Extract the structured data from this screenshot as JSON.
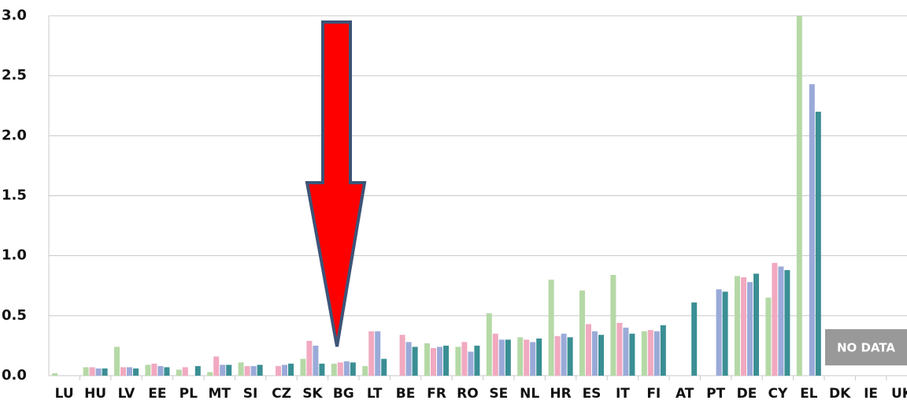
{
  "chart_data": {
    "type": "bar",
    "categories": [
      "LU",
      "HU",
      "LV",
      "EE",
      "PL",
      "MT",
      "SI",
      "CZ",
      "SK",
      "BG",
      "LT",
      "BE",
      "FR",
      "RO",
      "SE",
      "NL",
      "HR",
      "ES",
      "IT",
      "FI",
      "AT",
      "PT",
      "DE",
      "CY",
      "EL",
      "DK",
      "IE",
      "UK"
    ],
    "series": [
      {
        "color": "#b5d9a6",
        "values": [
          0.02,
          0.07,
          0.24,
          0.09,
          0.05,
          0.03,
          0.11,
          null,
          0.14,
          0.1,
          0.08,
          null,
          0.27,
          0.24,
          0.52,
          0.32,
          0.8,
          0.71,
          0.84,
          0.37,
          null,
          null,
          0.83,
          0.65,
          3.0,
          null,
          null,
          null
        ]
      },
      {
        "color": "#f1a9c0",
        "values": [
          null,
          0.07,
          0.07,
          0.1,
          0.07,
          0.16,
          0.08,
          0.08,
          0.29,
          0.11,
          0.37,
          0.34,
          0.23,
          0.28,
          0.35,
          0.3,
          0.33,
          0.43,
          0.44,
          0.38,
          null,
          null,
          0.82,
          0.94,
          null,
          null,
          null,
          null
        ]
      },
      {
        "color": "#9aaad8",
        "values": [
          null,
          0.06,
          0.07,
          0.08,
          null,
          0.09,
          0.08,
          0.09,
          0.25,
          0.12,
          0.37,
          0.28,
          0.24,
          0.2,
          0.3,
          0.28,
          0.35,
          0.37,
          0.4,
          0.37,
          null,
          0.72,
          0.78,
          0.91,
          2.43,
          null,
          null,
          null
        ]
      },
      {
        "color": "#3a8f94",
        "values": [
          null,
          0.06,
          0.06,
          0.07,
          0.08,
          0.09,
          0.09,
          0.1,
          0.1,
          0.11,
          0.14,
          0.24,
          0.25,
          0.25,
          0.3,
          0.31,
          0.32,
          0.34,
          0.35,
          0.42,
          0.61,
          0.7,
          0.85,
          0.88,
          2.2,
          null,
          null,
          null
        ]
      }
    ],
    "ylim": [
      0,
      3
    ],
    "yticks": [
      {
        "value": 0,
        "label": "0.0"
      },
      0.5,
      {
        "value": 1,
        "label": "1.0"
      },
      1.5,
      {
        "value": 2,
        "label": "2.0"
      },
      2.5,
      {
        "value": 3,
        "label": "3.0"
      }
    ],
    "grid": true,
    "annotation": "NO DATA"
  }
}
